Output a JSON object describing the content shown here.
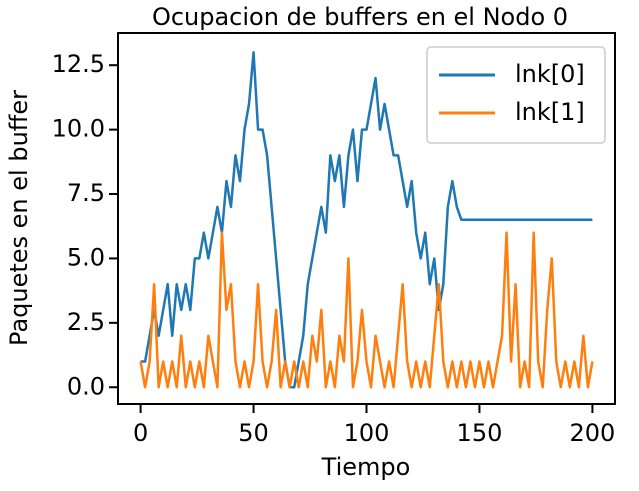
{
  "chart_data": {
    "type": "line",
    "title": "Ocupacion de buffers en el Nodo 0",
    "x_label": "Tiempo",
    "y_label": "Paquetes en el buffer",
    "x": [
      0,
      2,
      4,
      6,
      8,
      10,
      12,
      14,
      16,
      18,
      20,
      22,
      24,
      26,
      28,
      30,
      32,
      34,
      36,
      38,
      40,
      42,
      44,
      46,
      48,
      50,
      52,
      54,
      56,
      58,
      60,
      62,
      64,
      66,
      68,
      70,
      72,
      74,
      76,
      78,
      80,
      82,
      84,
      86,
      88,
      90,
      92,
      94,
      96,
      98,
      100,
      102,
      104,
      106,
      108,
      110,
      112,
      114,
      116,
      118,
      120,
      122,
      124,
      126,
      128,
      130,
      132,
      134,
      136,
      138,
      140,
      142,
      144,
      146,
      148,
      150,
      152,
      154,
      156,
      158,
      160,
      162,
      164,
      166,
      168,
      170,
      172,
      174,
      176,
      178,
      180,
      182,
      184,
      186,
      188,
      190,
      192,
      194,
      196,
      198,
      200
    ],
    "series": [
      {
        "name": "lnk[0]",
        "color": "#1f77b4",
        "values": [
          1,
          1,
          2,
          3,
          2,
          3,
          4,
          2,
          4,
          3,
          4,
          3,
          5,
          5,
          6,
          5,
          6,
          7,
          6,
          8,
          7,
          9,
          8,
          10,
          11,
          13,
          10,
          10,
          9,
          7,
          5,
          3,
          1,
          0,
          0,
          1,
          2,
          4,
          5,
          6,
          7,
          6,
          9,
          8,
          9,
          7,
          9,
          10,
          8,
          10,
          10,
          11,
          12,
          10,
          11,
          10,
          9,
          9,
          8,
          7,
          8,
          6,
          5,
          6,
          4,
          5,
          3,
          4,
          7,
          8,
          7,
          6.5,
          6.5,
          6.5,
          6.5,
          6.5,
          6.5,
          6.5,
          6.5,
          6.5,
          6.5,
          6.5,
          6.5,
          6.5,
          6.5,
          6.5,
          6.5,
          6.5,
          6.5,
          6.5,
          6.5,
          6.5,
          6.5,
          6.5,
          6.5,
          6.5,
          6.5,
          6.5,
          6.5,
          6.5,
          6.5
        ]
      },
      {
        "name": "lnk[1]",
        "color": "#ff7f0e",
        "values": [
          1,
          0,
          1,
          4,
          0,
          1,
          0,
          1,
          0,
          2,
          0,
          1,
          0,
          1,
          0,
          2,
          1,
          0,
          6,
          3,
          4,
          1,
          0,
          1,
          0,
          1,
          4,
          1,
          0,
          1,
          3,
          0,
          1,
          0,
          1,
          0,
          1,
          0,
          2,
          1,
          3,
          0,
          1,
          0,
          2,
          1,
          5,
          0,
          1,
          3,
          1,
          0,
          2,
          1,
          0,
          1,
          0,
          2,
          4,
          1,
          0,
          1,
          0,
          1,
          0,
          2,
          4,
          1,
          0,
          1,
          0,
          1,
          0,
          1,
          0,
          1,
          0,
          1,
          0,
          1,
          2,
          6,
          1,
          4,
          0,
          1,
          0,
          6,
          1,
          0,
          3,
          5,
          1,
          0,
          1,
          0,
          1,
          0,
          2,
          0,
          1
        ]
      }
    ],
    "xlim": [
      -10,
      210
    ],
    "xticks": [
      0,
      50,
      100,
      150,
      200
    ],
    "ylim": [
      -0.65,
      13.75
    ],
    "yticks": [
      {
        "value": 0,
        "label": "0.0"
      },
      2.5,
      {
        "value": 5,
        "label": "5.0"
      },
      7.5,
      {
        "value": 10,
        "label": "10.0"
      },
      12.5
    ],
    "legend": "upper right"
  }
}
